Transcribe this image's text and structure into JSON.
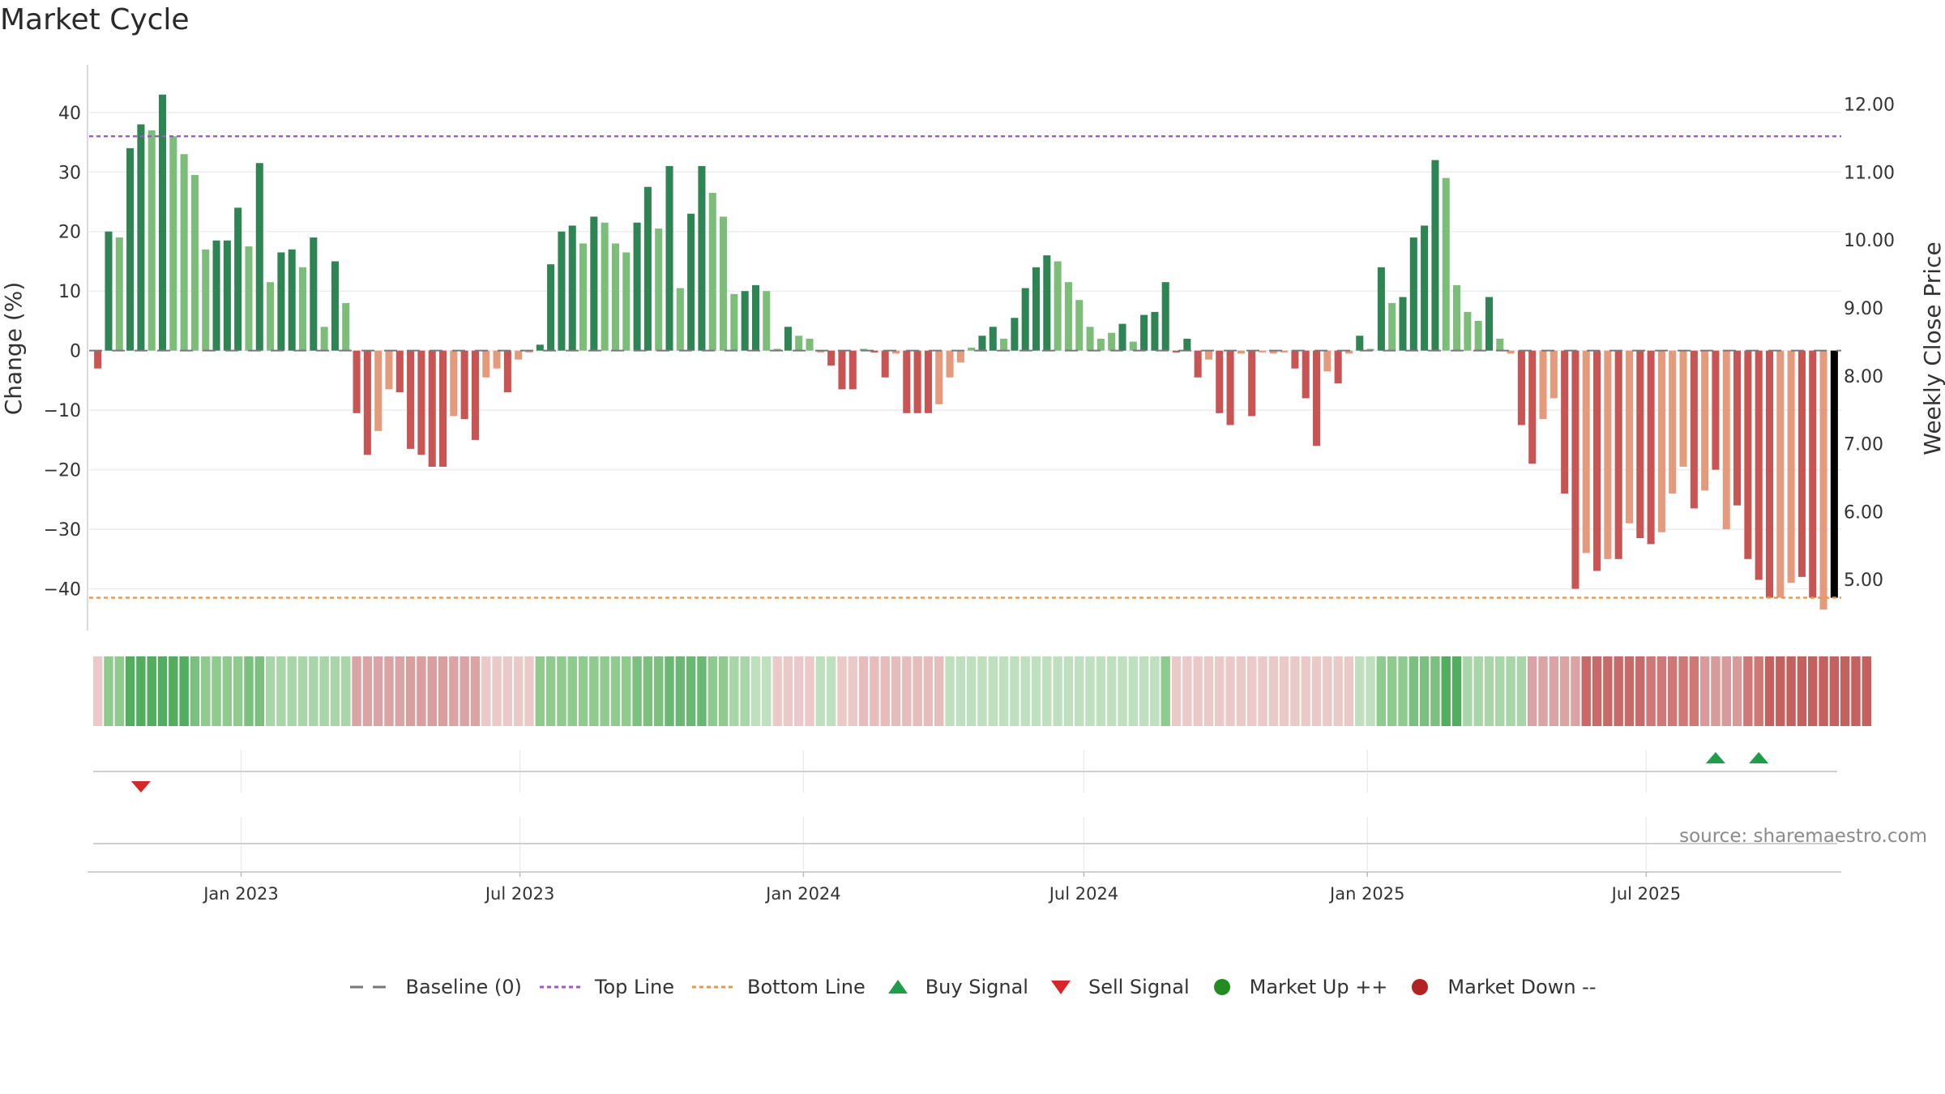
{
  "title": "Market Cycle",
  "chart_data": {
    "type": "bar",
    "title": "Market Cycle",
    "ylabel": "Change (%)",
    "y2label": "Weekly Close Price",
    "ylim": [
      -47,
      48
    ],
    "y2lim": [
      4.25,
      12.58
    ],
    "yticks": [
      40,
      30,
      20,
      10,
      0,
      -10,
      -20,
      -30,
      -40
    ],
    "ytick_labels": [
      "40",
      "30",
      "20",
      "10",
      "0",
      "−10",
      "−20",
      "−30",
      "−40"
    ],
    "y2ticks": [
      12,
      11,
      10,
      9,
      8,
      7,
      6,
      5
    ],
    "y2tick_labels": [
      "12.00",
      "11.00",
      "10.00",
      "9.00",
      "8.00",
      "7.00",
      "6.00",
      "5.00"
    ],
    "x_start": "2022-09-30",
    "x_step_days": 7,
    "x_tick_dates": [
      "2023-01-01",
      "2023-07-01",
      "2024-01-01",
      "2024-07-01",
      "2025-01-01",
      "2025-07-01"
    ],
    "x_tick_labels": [
      "Jan 2023",
      "Jul 2023",
      "Jan 2024",
      "Jul 2024",
      "Jan 2025",
      "Jul 2025"
    ],
    "grid": true,
    "top_line": 36,
    "bottom_line": -41.5,
    "values": [
      -3,
      20,
      19,
      34,
      38,
      37,
      43,
      36,
      33,
      29.5,
      17,
      18.5,
      18.5,
      24,
      17.5,
      31.5,
      11.5,
      16.5,
      17,
      14,
      19,
      4,
      15,
      8,
      -10.5,
      -17.5,
      -13.5,
      -6.5,
      -7,
      -16.5,
      -17.5,
      -19.5,
      -19.5,
      -11,
      -11.5,
      -15,
      -4.5,
      -3,
      -7,
      -1.5,
      -0.3,
      1,
      14.5,
      20,
      21,
      18,
      22.5,
      21.5,
      18,
      16.5,
      21.5,
      27.5,
      20.5,
      31,
      10.5,
      23,
      31,
      26.5,
      22.5,
      9.5,
      10,
      11,
      10,
      0.3,
      4,
      2.5,
      2,
      -0.3,
      -2.5,
      -6.5,
      -6.5,
      0.3,
      -0.3,
      -4.5,
      -0.5,
      -10.5,
      -10.5,
      -10.5,
      -9,
      -4.5,
      -2,
      0.5,
      2.5,
      4,
      2,
      5.5,
      10.5,
      14,
      16,
      15,
      11.5,
      8.5,
      4,
      2,
      3,
      4.5,
      1.5,
      6,
      6.5,
      11.5,
      -0.3,
      2,
      -4.5,
      -1.5,
      -10.5,
      -12.5,
      -0.5,
      -11,
      -0.3,
      -0.5,
      -0.3,
      -3,
      -8,
      -16,
      -3.5,
      -5.5,
      -0.5,
      2.5,
      0.3,
      14,
      8,
      9,
      19,
      21,
      32,
      29,
      11,
      6.5,
      5,
      9,
      2,
      -0.5,
      -12.5,
      -19,
      -11.5,
      -8,
      -24,
      -40,
      -34,
      -37,
      -35,
      -35,
      -29,
      -31.5,
      -32.5,
      -30.5,
      -24,
      -19.5,
      -26.5,
      -23.5,
      -20,
      -30,
      -26,
      -35,
      -38.5,
      -41.5,
      -41.5,
      -39,
      -38,
      -41.5,
      -43.5,
      -41.5
    ],
    "bar_colors": [
      "#c85454",
      "#2e8553",
      "#7dbd7a",
      "#2e8553",
      "#2e8553",
      "#7dbd7a",
      "#2e8553",
      "#7dbd7a",
      "#7dbd7a",
      "#7dbd7a",
      "#7dbd7a",
      "#2e8553",
      "#2e8553",
      "#2e8553",
      "#7dbd7a",
      "#2e8553",
      "#7dbd7a",
      "#2e8553",
      "#2e8553",
      "#7dbd7a",
      "#2e8553",
      "#7dbd7a",
      "#2e8553",
      "#7dbd7a",
      "#c85454",
      "#c85454",
      "#e49a7c",
      "#e49a7c",
      "#c85454",
      "#c85454",
      "#c85454",
      "#c85454",
      "#c85454",
      "#e49a7c",
      "#c85454",
      "#c85454",
      "#e49a7c",
      "#e49a7c",
      "#c85454",
      "#e49a7c",
      "#e49a7c",
      "#2e8553",
      "#2e8553",
      "#2e8553",
      "#2e8553",
      "#7dbd7a",
      "#2e8553",
      "#7dbd7a",
      "#7dbd7a",
      "#7dbd7a",
      "#2e8553",
      "#2e8553",
      "#7dbd7a",
      "#2e8553",
      "#7dbd7a",
      "#2e8553",
      "#2e8553",
      "#7dbd7a",
      "#7dbd7a",
      "#7dbd7a",
      "#2e8553",
      "#2e8553",
      "#7dbd7a",
      "#7dbd7a",
      "#2e8553",
      "#7dbd7a",
      "#7dbd7a",
      "#e49a7c",
      "#c85454",
      "#c85454",
      "#c85454",
      "#7dbd7a",
      "#c85454",
      "#c85454",
      "#e49a7c",
      "#c85454",
      "#c85454",
      "#c85454",
      "#e49a7c",
      "#e49a7c",
      "#e49a7c",
      "#7dbd7a",
      "#2e8553",
      "#2e8553",
      "#7dbd7a",
      "#2e8553",
      "#2e8553",
      "#2e8553",
      "#2e8553",
      "#7dbd7a",
      "#7dbd7a",
      "#7dbd7a",
      "#7dbd7a",
      "#7dbd7a",
      "#7dbd7a",
      "#2e8553",
      "#7dbd7a",
      "#2e8553",
      "#2e8553",
      "#2e8553",
      "#c85454",
      "#2e8553",
      "#c85454",
      "#e49a7c",
      "#c85454",
      "#c85454",
      "#e49a7c",
      "#c85454",
      "#e49a7c",
      "#e49a7c",
      "#e49a7c",
      "#c85454",
      "#c85454",
      "#c85454",
      "#e49a7c",
      "#c85454",
      "#e49a7c",
      "#2e8553",
      "#7dbd7a",
      "#2e8553",
      "#7dbd7a",
      "#2e8553",
      "#2e8553",
      "#2e8553",
      "#2e8553",
      "#7dbd7a",
      "#7dbd7a",
      "#7dbd7a",
      "#7dbd7a",
      "#2e8553",
      "#7dbd7a",
      "#e49a7c",
      "#c85454",
      "#c85454",
      "#e49a7c",
      "#e49a7c",
      "#c85454",
      "#c85454",
      "#e49a7c",
      "#c85454",
      "#e49a7c",
      "#c85454",
      "#e49a7c",
      "#c85454",
      "#c85454",
      "#e49a7c",
      "#e49a7c",
      "#e49a7c",
      "#c85454",
      "#e49a7c",
      "#c85454",
      "#e49a7c",
      "#c85454",
      "#c85454",
      "#c85454",
      "#c85454",
      "#e49a7c",
      "#e49a7c",
      "#c85454",
      "#c85454",
      "#e49a7c"
    ],
    "heat_colors": [
      "#ecc9c9",
      "#8fca8f",
      "#8fca8f",
      "#52ad5f",
      "#52ad5f",
      "#52ad5f",
      "#52ad5f",
      "#52ad5f",
      "#52ad5f",
      "#7cc07f",
      "#8fca8f",
      "#8fca8f",
      "#8fca8f",
      "#8fca8f",
      "#7cc07f",
      "#7cc07f",
      "#a8d6a8",
      "#a8d6a8",
      "#a8d6a8",
      "#a8d6a8",
      "#a8d6a8",
      "#a8d6a8",
      "#a8d6a8",
      "#a8d6a8",
      "#dba4a4",
      "#dba4a4",
      "#dba4a4",
      "#dba4a4",
      "#dba4a4",
      "#d99f9f",
      "#d99f9f",
      "#d99f9f",
      "#d99f9f",
      "#dba4a4",
      "#dba4a4",
      "#dba4a4",
      "#ecc9c9",
      "#ecc9c9",
      "#ecc9c9",
      "#ecc9c9",
      "#ecc9c9",
      "#8fca8f",
      "#8fca8f",
      "#8fca8f",
      "#8fca8f",
      "#8fca8f",
      "#8fca8f",
      "#8fca8f",
      "#8fca8f",
      "#8fca8f",
      "#7cc07f",
      "#7cc07f",
      "#7cc07f",
      "#6bb874",
      "#6bb874",
      "#6bb874",
      "#6bb874",
      "#8fca8f",
      "#8fca8f",
      "#a8d6a8",
      "#a8d6a8",
      "#bfe0bf",
      "#bfe0bf",
      "#ecc9c9",
      "#ecc9c9",
      "#ecc9c9",
      "#ecc9c9",
      "#bfe0bf",
      "#bfe0bf",
      "#ecc9c9",
      "#ecc9c9",
      "#e6bcbc",
      "#e6bcbc",
      "#e6bcbc",
      "#e6bcbc",
      "#e6bcbc",
      "#e6bcbc",
      "#e6bcbc",
      "#e6bcbc",
      "#bfe0bf",
      "#bfe0bf",
      "#bfe0bf",
      "#bfe0bf",
      "#bfe0bf",
      "#bfe0bf",
      "#bfe0bf",
      "#bfe0bf",
      "#bfe0bf",
      "#bfe0bf",
      "#bfe0bf",
      "#bfe0bf",
      "#bfe0bf",
      "#bfe0bf",
      "#bfe0bf",
      "#bfe0bf",
      "#bfe0bf",
      "#bfe0bf",
      "#bfe0bf",
      "#bfe0bf",
      "#8fca8f",
      "#ecc9c9",
      "#ecc9c9",
      "#ecc9c9",
      "#ecc9c9",
      "#ecc9c9",
      "#ecc9c9",
      "#ecc9c9",
      "#ecc9c9",
      "#ecc9c9",
      "#ecc9c9",
      "#ecc9c9",
      "#ecc9c9",
      "#ecc9c9",
      "#ecc9c9",
      "#ecc9c9",
      "#ecc9c9",
      "#ecc9c9",
      "#bfe0bf",
      "#bfe0bf",
      "#8fca8f",
      "#8fca8f",
      "#8fca8f",
      "#7cc07f",
      "#7cc07f",
      "#7cc07f",
      "#52ad5f",
      "#52ad5f",
      "#a8d6a8",
      "#a8d6a8",
      "#a8d6a8",
      "#a8d6a8",
      "#a8d6a8",
      "#a8d6a8",
      "#dba4a4",
      "#dba4a4",
      "#dba4a4",
      "#dba4a4",
      "#dba4a4",
      "#c96a6a",
      "#c96a6a",
      "#c96a6a",
      "#c96a6a",
      "#c96a6a",
      "#c96a6a",
      "#d07777",
      "#d07777",
      "#d07777",
      "#d07777",
      "#d07777",
      "#d89a9a",
      "#d89a9a",
      "#d89a9a",
      "#d89a9a",
      "#d07777",
      "#d07777",
      "#c4605e",
      "#c4605e",
      "#c4605e",
      "#c4605e",
      "#c4605e",
      "#c4605e",
      "#c4605e",
      "#c4605e",
      "#c4605e",
      "#c4605e"
    ],
    "buy_signal_indices": [
      150,
      154
    ],
    "sell_signal_indices": [
      4
    ],
    "legend": [
      "Baseline (0)",
      "Top Line",
      "Bottom Line",
      "Buy Signal",
      "Sell Signal",
      "Market Up ++",
      "Market Down --"
    ],
    "legend_placement": "bottom"
  },
  "colors": {
    "up_strong": "#2e8553",
    "up_light": "#7dbd7a",
    "down_strong": "#c85454",
    "down_light": "#e49a7c",
    "top_line": "#9b59c9",
    "bottom_line": "#e8974f",
    "buy": "#1e9e4a",
    "sell": "#d62728",
    "market_up": "#228b22",
    "market_down": "#b22222",
    "baseline": "#777777"
  },
  "source": "source: sharemaestro.com",
  "legend": {
    "baseline": "Baseline (0)",
    "top_line": "Top Line",
    "bottom_line": "Bottom Line",
    "buy_signal": "Buy Signal",
    "sell_signal": "Sell Signal",
    "market_up": "Market Up ++",
    "market_down": "Market Down --"
  }
}
